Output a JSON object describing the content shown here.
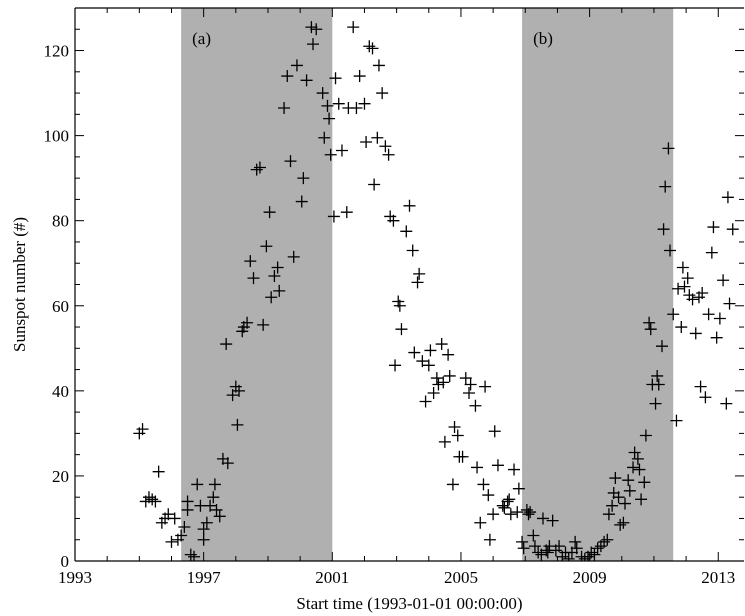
{
  "chart_data": {
    "type": "scatter",
    "title": "",
    "xlabel": "Start time (1993-01-01 00:00:00)",
    "ylabel": "Sunspot number (#)",
    "xlim": [
      1993,
      2013.8
    ],
    "ylim": [
      0,
      130
    ],
    "x_ticks": [
      1993,
      1997,
      2001,
      2005,
      2009,
      2013
    ],
    "y_ticks": [
      0,
      20,
      40,
      60,
      80,
      100,
      120
    ],
    "grid": false,
    "marker": "plus",
    "shaded_regions": [
      {
        "label": "(a)",
        "x_start": 1996.3,
        "x_end": 2001.0,
        "color": "#b0b0b0"
      },
      {
        "label": "(b)",
        "x_start": 2006.9,
        "x_end": 2011.6,
        "color": "#b0b0b0"
      }
    ],
    "points": [
      [
        1995.0,
        30
      ],
      [
        1995.1,
        31
      ],
      [
        1995.2,
        14
      ],
      [
        1995.3,
        15
      ],
      [
        1995.4,
        14.5
      ],
      [
        1995.5,
        14
      ],
      [
        1995.6,
        21
      ],
      [
        1995.7,
        9
      ],
      [
        1995.8,
        10
      ],
      [
        1995.9,
        11
      ],
      [
        1996.0,
        4.5
      ],
      [
        1996.1,
        10
      ],
      [
        1996.2,
        5
      ],
      [
        1996.3,
        6
      ],
      [
        1996.4,
        8
      ],
      [
        1996.5,
        12
      ],
      [
        1996.5,
        14
      ],
      [
        1996.6,
        1.5
      ],
      [
        1996.7,
        1
      ],
      [
        1996.8,
        18
      ],
      [
        1996.9,
        13
      ],
      [
        1997.0,
        5
      ],
      [
        1997.0,
        7.5
      ],
      [
        1997.1,
        9
      ],
      [
        1997.2,
        13
      ],
      [
        1997.3,
        15
      ],
      [
        1997.35,
        18
      ],
      [
        1997.4,
        12
      ],
      [
        1997.5,
        10.5
      ],
      [
        1997.6,
        24
      ],
      [
        1997.7,
        51
      ],
      [
        1997.75,
        23
      ],
      [
        1997.9,
        39
      ],
      [
        1998.0,
        41
      ],
      [
        1998.05,
        32
      ],
      [
        1998.1,
        40
      ],
      [
        1998.2,
        54
      ],
      [
        1998.25,
        55
      ],
      [
        1998.35,
        56
      ],
      [
        1998.45,
        70.5
      ],
      [
        1998.55,
        66.5
      ],
      [
        1998.65,
        92
      ],
      [
        1998.75,
        92.5
      ],
      [
        1998.85,
        55.5
      ],
      [
        1998.95,
        74
      ],
      [
        1999.05,
        82
      ],
      [
        1999.1,
        62
      ],
      [
        1999.2,
        67
      ],
      [
        1999.3,
        69
      ],
      [
        1999.35,
        63.5
      ],
      [
        1999.5,
        106.5
      ],
      [
        1999.6,
        114
      ],
      [
        1999.7,
        94
      ],
      [
        1999.8,
        71.5
      ],
      [
        1999.9,
        116.5
      ],
      [
        2000.05,
        84.5
      ],
      [
        2000.1,
        90
      ],
      [
        2000.2,
        113
      ],
      [
        2000.35,
        125.5
      ],
      [
        2000.4,
        121.5
      ],
      [
        2000.5,
        125
      ],
      [
        2000.7,
        110
      ],
      [
        2000.75,
        99.5
      ],
      [
        2000.85,
        107
      ],
      [
        2000.9,
        104
      ],
      [
        2000.95,
        95.5
      ],
      [
        2001.05,
        81
      ],
      [
        2001.1,
        113.5
      ],
      [
        2001.2,
        107.5
      ],
      [
        2001.3,
        96.5
      ],
      [
        2001.45,
        82
      ],
      [
        2001.5,
        106.5
      ],
      [
        2001.65,
        125.5
      ],
      [
        2001.75,
        106.5
      ],
      [
        2001.85,
        114
      ],
      [
        2002.0,
        107.5
      ],
      [
        2002.05,
        98.5
      ],
      [
        2002.15,
        121
      ],
      [
        2002.25,
        120.5
      ],
      [
        2002.3,
        88.5
      ],
      [
        2002.4,
        99.5
      ],
      [
        2002.45,
        116.5
      ],
      [
        2002.55,
        110
      ],
      [
        2002.65,
        97.5
      ],
      [
        2002.75,
        95.5
      ],
      [
        2002.8,
        81
      ],
      [
        2002.9,
        80
      ],
      [
        2002.95,
        46
      ],
      [
        2003.05,
        61
      ],
      [
        2003.1,
        60
      ],
      [
        2003.15,
        54.5
      ],
      [
        2003.3,
        77.5
      ],
      [
        2003.4,
        83.5
      ],
      [
        2003.5,
        73
      ],
      [
        2003.55,
        49
      ],
      [
        2003.65,
        65.5
      ],
      [
        2003.7,
        67.5
      ],
      [
        2003.8,
        47
      ],
      [
        2003.9,
        37.5
      ],
      [
        2004.0,
        46
      ],
      [
        2004.05,
        49.5
      ],
      [
        2004.15,
        39.5
      ],
      [
        2004.25,
        43
      ],
      [
        2004.3,
        41.5
      ],
      [
        2004.4,
        51
      ],
      [
        2004.45,
        42
      ],
      [
        2004.5,
        28
      ],
      [
        2004.6,
        48.5
      ],
      [
        2004.65,
        43.5
      ],
      [
        2004.75,
        18
      ],
      [
        2004.8,
        31.5
      ],
      [
        2004.9,
        29.5
      ],
      [
        2004.95,
        24.5
      ],
      [
        2005.05,
        24.5
      ],
      [
        2005.15,
        43
      ],
      [
        2005.25,
        39.5
      ],
      [
        2005.3,
        41.5
      ],
      [
        2005.45,
        36.5
      ],
      [
        2005.5,
        22
      ],
      [
        2005.6,
        9
      ],
      [
        2005.7,
        18
      ],
      [
        2005.75,
        41
      ],
      [
        2005.85,
        15.5
      ],
      [
        2005.9,
        5
      ],
      [
        2006.0,
        11
      ],
      [
        2006.05,
        30.5
      ],
      [
        2006.15,
        22.5
      ],
      [
        2006.3,
        13
      ],
      [
        2006.35,
        12.5
      ],
      [
        2006.45,
        14
      ],
      [
        2006.5,
        14.5
      ],
      [
        2006.55,
        11
      ],
      [
        2006.65,
        21.5
      ],
      [
        2006.75,
        11.5
      ],
      [
        2006.8,
        17
      ],
      [
        2006.9,
        4.5
      ],
      [
        2006.95,
        3
      ],
      [
        2007.05,
        12
      ],
      [
        2007.1,
        11
      ],
      [
        2007.15,
        11.5
      ],
      [
        2007.25,
        6
      ],
      [
        2007.3,
        3.5
      ],
      [
        2007.4,
        2
      ],
      [
        2007.5,
        1.5
      ],
      [
        2007.55,
        10
      ],
      [
        2007.65,
        2.5
      ],
      [
        2007.7,
        2
      ],
      [
        2007.75,
        3.5
      ],
      [
        2007.85,
        9.5
      ],
      [
        2007.95,
        2.5
      ],
      [
        2008.05,
        3.5
      ],
      [
        2008.15,
        1
      ],
      [
        2008.25,
        2
      ],
      [
        2008.35,
        0.5
      ],
      [
        2008.45,
        2
      ],
      [
        2008.55,
        4.5
      ],
      [
        2008.6,
        3
      ],
      [
        2008.75,
        1
      ],
      [
        2008.85,
        0.5
      ],
      [
        2008.95,
        1
      ],
      [
        2009.05,
        2
      ],
      [
        2009.15,
        1.5
      ],
      [
        2009.25,
        3
      ],
      [
        2009.35,
        3.5
      ],
      [
        2009.45,
        4.5
      ],
      [
        2009.55,
        5
      ],
      [
        2009.6,
        11
      ],
      [
        2009.7,
        13
      ],
      [
        2009.75,
        16
      ],
      [
        2009.8,
        19.5
      ],
      [
        2009.9,
        15
      ],
      [
        2009.95,
        8.5
      ],
      [
        2010.05,
        9
      ],
      [
        2010.1,
        13.5
      ],
      [
        2010.2,
        19
      ],
      [
        2010.25,
        16.5
      ],
      [
        2010.35,
        22
      ],
      [
        2010.4,
        25.5
      ],
      [
        2010.5,
        24
      ],
      [
        2010.55,
        21.5
      ],
      [
        2010.6,
        14.5
      ],
      [
        2010.7,
        18.5
      ],
      [
        2010.75,
        29.5
      ],
      [
        2010.85,
        56
      ],
      [
        2010.9,
        54.5
      ],
      [
        2010.95,
        41.5
      ],
      [
        2011.05,
        37
      ],
      [
        2011.1,
        43.5
      ],
      [
        2011.15,
        41.5
      ],
      [
        2011.25,
        50.5
      ],
      [
        2011.3,
        78
      ],
      [
        2011.35,
        88
      ],
      [
        2011.45,
        97
      ],
      [
        2011.5,
        73
      ],
      [
        2011.6,
        58
      ],
      [
        2011.7,
        33
      ],
      [
        2011.75,
        64
      ],
      [
        2011.85,
        55
      ],
      [
        2011.9,
        69
      ],
      [
        2011.95,
        64.5
      ],
      [
        2012.05,
        66.5
      ],
      [
        2012.1,
        62.5
      ],
      [
        2012.2,
        61.5
      ],
      [
        2012.3,
        53.5
      ],
      [
        2012.4,
        62
      ],
      [
        2012.45,
        41
      ],
      [
        2012.5,
        63
      ],
      [
        2012.6,
        38.5
      ],
      [
        2012.7,
        58
      ],
      [
        2012.8,
        72.5
      ],
      [
        2012.85,
        78.5
      ],
      [
        2012.95,
        52.5
      ],
      [
        2013.05,
        57
      ],
      [
        2013.15,
        66
      ],
      [
        2013.25,
        37
      ],
      [
        2013.3,
        85.5
      ],
      [
        2013.35,
        60.5
      ],
      [
        2013.45,
        78
      ]
    ]
  }
}
